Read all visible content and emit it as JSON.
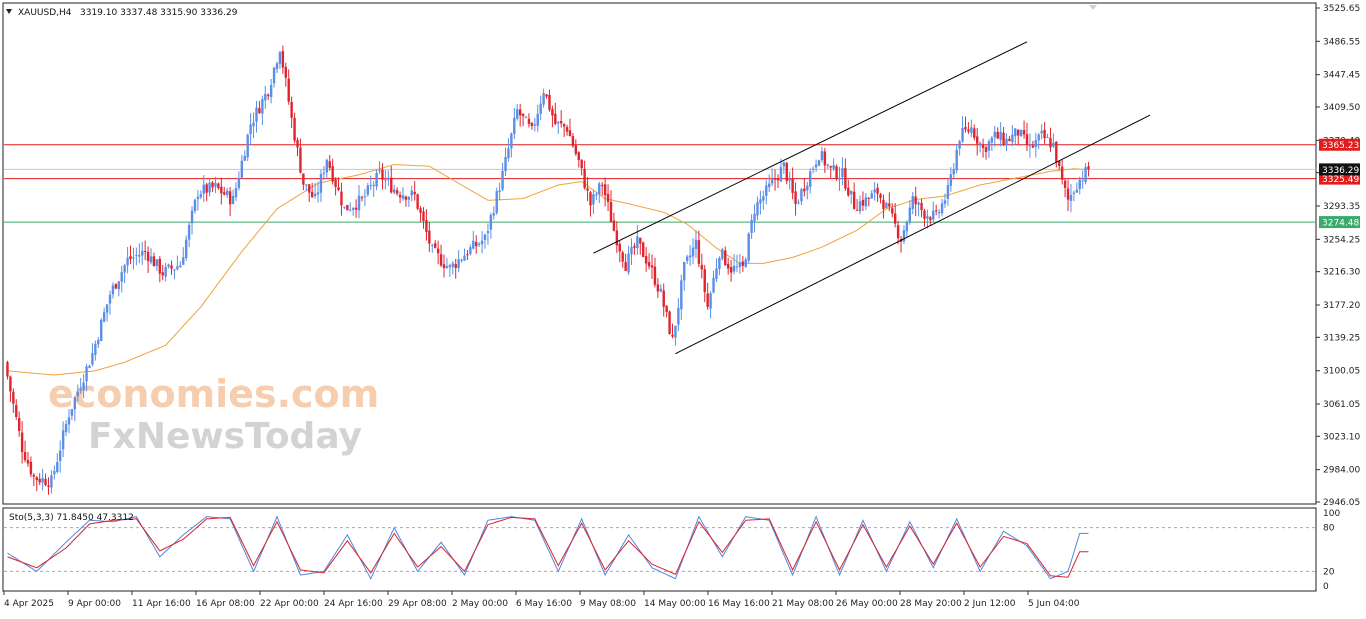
{
  "header": {
    "symbol": "XAUUSD,H4",
    "ohlc": "3319.10 3337.48 3315.90 3336.29",
    "menu_icon": "triangle-down-icon"
  },
  "watermark": {
    "line1": "economies.com",
    "line2": "FxNewsToday"
  },
  "colors": {
    "bull": "#5b8ee6",
    "bear": "#e0242e",
    "ma": "#f0a23a",
    "stoch_main": "#4f86de",
    "stoch_signal": "#d9232e",
    "level_red": "#e21b1b",
    "level_green": "#3aa96b",
    "price_tag": "#111111",
    "trend": "#000000"
  },
  "chart_data": [
    {
      "type": "candlestick",
      "symbol": "XAUUSD",
      "timeframe": "H4",
      "ylim": [
        2946.05,
        3525.65
      ],
      "y_ticks": [
        "3525.65",
        "3486.55",
        "3447.45",
        "3409.50",
        "3370.40",
        "3332.45",
        "3293.35",
        "3254.25",
        "3216.30",
        "3177.20",
        "3139.25",
        "3100.05",
        "3061.05",
        "3023.10",
        "2984.00",
        "2946.05"
      ],
      "x_ticks": [
        "4 Apr 2025",
        "9 Apr 00:00",
        "11 Apr 16:00",
        "16 Apr 08:00",
        "22 Apr 00:00",
        "24 Apr 16:00",
        "29 Apr 08:00",
        "2 May 00:00",
        "6 May 16:00",
        "9 May 08:00",
        "14 May 00:00",
        "16 May 16:00",
        "21 May 08:00",
        "26 May 00:00",
        "28 May 20:00",
        "2 Jun 12:00",
        "5 Jun 04:00"
      ],
      "anchor_close": [
        [
          0,
          3110
        ],
        [
          6,
          3010
        ],
        [
          10,
          2975
        ],
        [
          16,
          2970
        ],
        [
          22,
          3050
        ],
        [
          30,
          3120
        ],
        [
          36,
          3190
        ],
        [
          42,
          3230
        ],
        [
          48,
          3240
        ],
        [
          54,
          3215
        ],
        [
          60,
          3225
        ],
        [
          66,
          3310
        ],
        [
          72,
          3315
        ],
        [
          78,
          3300
        ],
        [
          84,
          3390
        ],
        [
          90,
          3430
        ],
        [
          94,
          3480
        ],
        [
          98,
          3395
        ],
        [
          102,
          3320
        ],
        [
          106,
          3300
        ],
        [
          110,
          3350
        ],
        [
          116,
          3290
        ],
        [
          122,
          3300
        ],
        [
          128,
          3330
        ],
        [
          134,
          3310
        ],
        [
          140,
          3305
        ],
        [
          146,
          3240
        ],
        [
          152,
          3220
        ],
        [
          158,
          3240
        ],
        [
          164,
          3255
        ],
        [
          170,
          3330
        ],
        [
          175,
          3405
        ],
        [
          180,
          3380
        ],
        [
          184,
          3430
        ],
        [
          188,
          3390
        ],
        [
          192,
          3385
        ],
        [
          196,
          3345
        ],
        [
          200,
          3295
        ],
        [
          204,
          3320
        ],
        [
          208,
          3265
        ],
        [
          212,
          3225
        ],
        [
          216,
          3250
        ],
        [
          220,
          3225
        ],
        [
          224,
          3190
        ],
        [
          228,
          3135
        ],
        [
          232,
          3220
        ],
        [
          236,
          3250
        ],
        [
          240,
          3175
        ],
        [
          244,
          3240
        ],
        [
          248,
          3220
        ],
        [
          252,
          3220
        ],
        [
          256,
          3290
        ],
        [
          262,
          3320
        ],
        [
          266,
          3340
        ],
        [
          270,
          3295
        ],
        [
          274,
          3325
        ],
        [
          278,
          3355
        ],
        [
          282,
          3335
        ],
        [
          286,
          3330
        ],
        [
          290,
          3295
        ],
        [
          294,
          3300
        ],
        [
          298,
          3310
        ],
        [
          302,
          3285
        ],
        [
          306,
          3255
        ],
        [
          310,
          3300
        ],
        [
          314,
          3285
        ],
        [
          318,
          3280
        ],
        [
          322,
          3310
        ],
        [
          326,
          3375
        ],
        [
          330,
          3385
        ],
        [
          334,
          3360
        ],
        [
          338,
          3375
        ],
        [
          342,
          3370
        ],
        [
          346,
          3380
        ],
        [
          350,
          3360
        ],
        [
          354,
          3375
        ],
        [
          358,
          3365
        ],
        [
          361,
          3320
        ],
        [
          363,
          3300
        ],
        [
          366,
          3320
        ],
        [
          370,
          3336.29
        ]
      ],
      "moving_average": [
        [
          0,
          3100
        ],
        [
          6,
          3098
        ],
        [
          16,
          3095
        ],
        [
          30,
          3100
        ],
        [
          40,
          3110
        ],
        [
          54,
          3130
        ],
        [
          66,
          3175
        ],
        [
          80,
          3240
        ],
        [
          92,
          3290
        ],
        [
          106,
          3320
        ],
        [
          120,
          3330
        ],
        [
          132,
          3342
        ],
        [
          144,
          3340
        ],
        [
          156,
          3316
        ],
        [
          164,
          3300
        ],
        [
          176,
          3302
        ],
        [
          188,
          3318
        ],
        [
          196,
          3322
        ],
        [
          204,
          3302
        ],
        [
          212,
          3296
        ],
        [
          224,
          3286
        ],
        [
          232,
          3272
        ],
        [
          242,
          3244
        ],
        [
          250,
          3226
        ],
        [
          258,
          3226
        ],
        [
          268,
          3233
        ],
        [
          278,
          3245
        ],
        [
          290,
          3265
        ],
        [
          300,
          3290
        ],
        [
          310,
          3301
        ],
        [
          320,
          3305
        ],
        [
          332,
          3318
        ],
        [
          344,
          3326
        ],
        [
          356,
          3334
        ],
        [
          364,
          3337
        ],
        [
          370,
          3336
        ]
      ],
      "horizontal_levels": [
        {
          "label": "3365.23",
          "value": 3365.23,
          "color": "red"
        },
        {
          "label": "3325.49",
          "value": 3325.49,
          "color": "red"
        },
        {
          "label": "3274.48",
          "value": 3274.48,
          "color": "green"
        }
      ],
      "current_price": {
        "label": "3336.29",
        "value": 3336.29
      },
      "trendlines": [
        {
          "from": [
            200,
            3238
          ],
          "to": [
            348,
            3486
          ]
        },
        {
          "from": [
            228,
            3120
          ],
          "to": [
            390,
            3400
          ]
        }
      ]
    },
    {
      "type": "line",
      "title": "Sto(5,3,3) 71.8450 47.3312",
      "ylim": [
        0,
        100
      ],
      "y_ticks": [
        "100",
        "80",
        "20",
        "0"
      ],
      "levels": [
        80,
        20
      ],
      "series": [
        {
          "name": "main",
          "anchors": [
            [
              0,
              45
            ],
            [
              10,
              20
            ],
            [
              20,
              60
            ],
            [
              28,
              90
            ],
            [
              36,
              88
            ],
            [
              44,
              95
            ],
            [
              52,
              40
            ],
            [
              60,
              70
            ],
            [
              68,
              95
            ],
            [
              76,
              92
            ],
            [
              84,
              20
            ],
            [
              92,
              95
            ],
            [
              100,
              15
            ],
            [
              108,
              20
            ],
            [
              116,
              70
            ],
            [
              124,
              10
            ],
            [
              132,
              80
            ],
            [
              140,
              20
            ],
            [
              148,
              60
            ],
            [
              156,
              15
            ],
            [
              164,
              90
            ],
            [
              172,
              95
            ],
            [
              180,
              90
            ],
            [
              188,
              20
            ],
            [
              196,
              92
            ],
            [
              204,
              15
            ],
            [
              212,
              70
            ],
            [
              220,
              25
            ],
            [
              228,
              10
            ],
            [
              236,
              95
            ],
            [
              244,
              40
            ],
            [
              252,
              95
            ],
            [
              260,
              90
            ],
            [
              268,
              15
            ],
            [
              276,
              95
            ],
            [
              284,
              15
            ],
            [
              292,
              90
            ],
            [
              300,
              20
            ],
            [
              308,
              88
            ],
            [
              316,
              25
            ],
            [
              324,
              92
            ],
            [
              332,
              20
            ],
            [
              340,
              75
            ],
            [
              348,
              55
            ],
            [
              356,
              10
            ],
            [
              362,
              20
            ],
            [
              366,
              72
            ]
          ]
        },
        {
          "name": "signal",
          "anchors": [
            [
              0,
              40
            ],
            [
              10,
              25
            ],
            [
              20,
              52
            ],
            [
              28,
              85
            ],
            [
              36,
              90
            ],
            [
              44,
              92
            ],
            [
              52,
              48
            ],
            [
              60,
              64
            ],
            [
              68,
              92
            ],
            [
              76,
              94
            ],
            [
              84,
              28
            ],
            [
              92,
              88
            ],
            [
              100,
              22
            ],
            [
              108,
              18
            ],
            [
              116,
              62
            ],
            [
              124,
              18
            ],
            [
              132,
              72
            ],
            [
              140,
              26
            ],
            [
              148,
              54
            ],
            [
              156,
              20
            ],
            [
              164,
              84
            ],
            [
              172,
              94
            ],
            [
              180,
              92
            ],
            [
              188,
              28
            ],
            [
              196,
              86
            ],
            [
              204,
              22
            ],
            [
              212,
              62
            ],
            [
              220,
              30
            ],
            [
              228,
              16
            ],
            [
              236,
              88
            ],
            [
              244,
              46
            ],
            [
              252,
              90
            ],
            [
              260,
              92
            ],
            [
              268,
              22
            ],
            [
              276,
              88
            ],
            [
              284,
              22
            ],
            [
              292,
              84
            ],
            [
              300,
              26
            ],
            [
              308,
              82
            ],
            [
              316,
              30
            ],
            [
              324,
              86
            ],
            [
              332,
              26
            ],
            [
              340,
              68
            ],
            [
              348,
              58
            ],
            [
              356,
              14
            ],
            [
              362,
              12
            ],
            [
              366,
              47
            ]
          ]
        }
      ]
    }
  ]
}
